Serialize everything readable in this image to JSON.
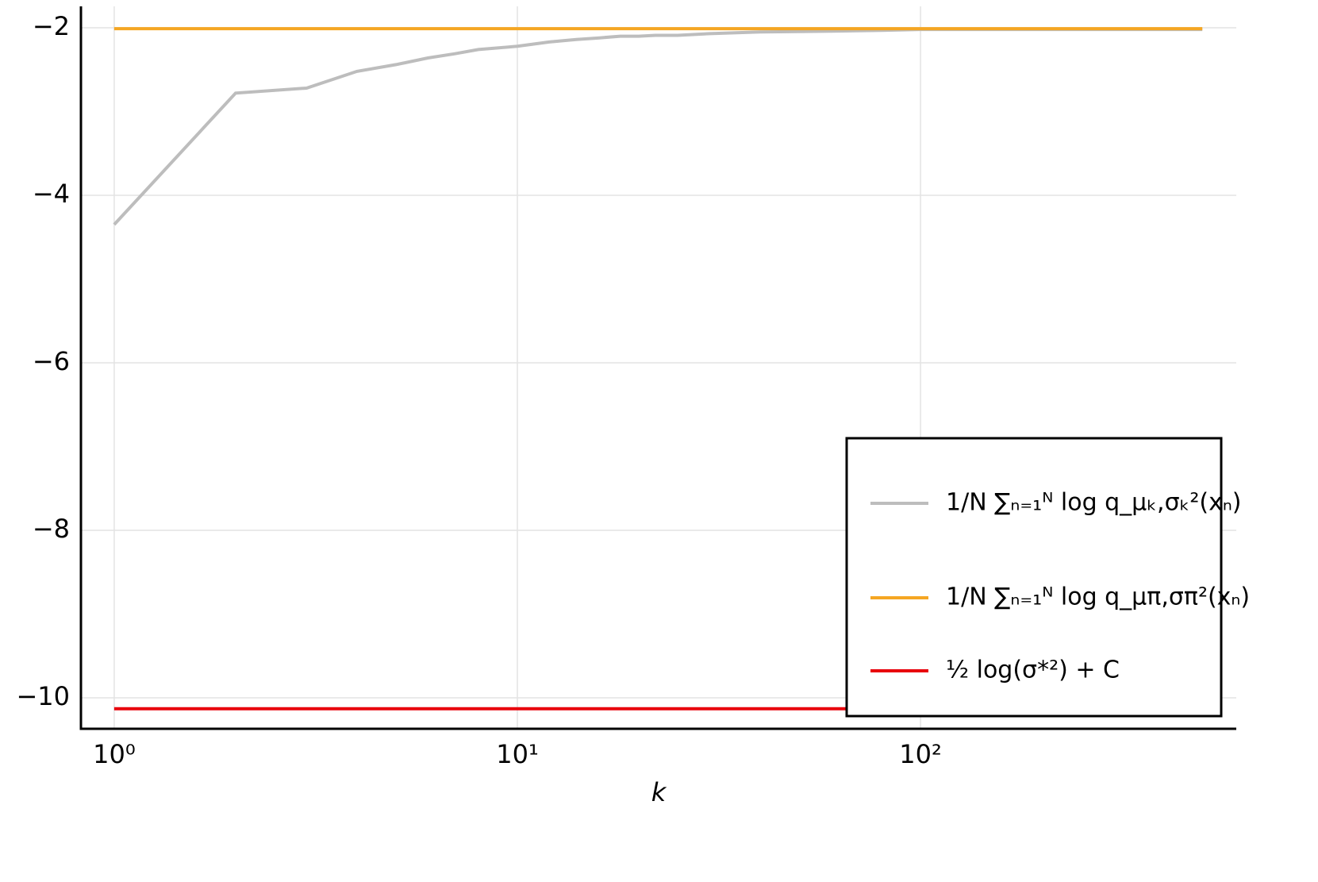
{
  "chart_data": {
    "type": "line",
    "xlabel": "k",
    "log_x": true,
    "grid": true,
    "legend_position": "lower right",
    "xlim": [
      0.827,
      607
    ],
    "ylim": [
      -10.37,
      -1.744
    ],
    "xticks": [
      {
        "value": 1,
        "label": "10⁰"
      },
      {
        "value": 10,
        "label": "10¹"
      },
      {
        "value": 100,
        "label": "10²"
      }
    ],
    "yticks": [
      {
        "value": -10,
        "label": "−10"
      },
      {
        "value": -8,
        "label": "−8"
      },
      {
        "value": -6,
        "label": "−6"
      },
      {
        "value": -4,
        "label": "−4"
      },
      {
        "value": -2,
        "label": "−2"
      }
    ],
    "series": [
      {
        "name": "1/N ∑ₙ₌₁ᴺ log q_μₖ,σₖ²(xₙ)",
        "color": "#bdbdbd",
        "x": [
          1,
          2,
          3,
          4,
          5,
          6,
          7,
          8,
          9,
          10,
          12,
          14,
          16,
          18,
          20,
          22,
          25,
          30,
          40,
          60,
          80,
          100,
          200,
          500
        ],
        "values": [
          -4.35,
          -2.78,
          -2.72,
          -2.52,
          -2.44,
          -2.36,
          -2.31,
          -2.26,
          -2.24,
          -2.22,
          -2.17,
          -2.14,
          -2.12,
          -2.1,
          -2.1,
          -2.09,
          -2.09,
          -2.07,
          -2.05,
          -2.04,
          -2.03,
          -2.02,
          -2.02,
          -2.02
        ]
      },
      {
        "name": "1/N ∑ₙ₌₁ᴺ log q_μπ,σπ²(xₙ)",
        "color": "#f5a623",
        "x": [
          1,
          500
        ],
        "values": [
          -2.01,
          -2.01
        ]
      },
      {
        "name": "½ log(σ*²) + C",
        "color": "#e8000b",
        "x": [
          1,
          500
        ],
        "values": [
          -10.13,
          -10.13
        ]
      }
    ]
  }
}
